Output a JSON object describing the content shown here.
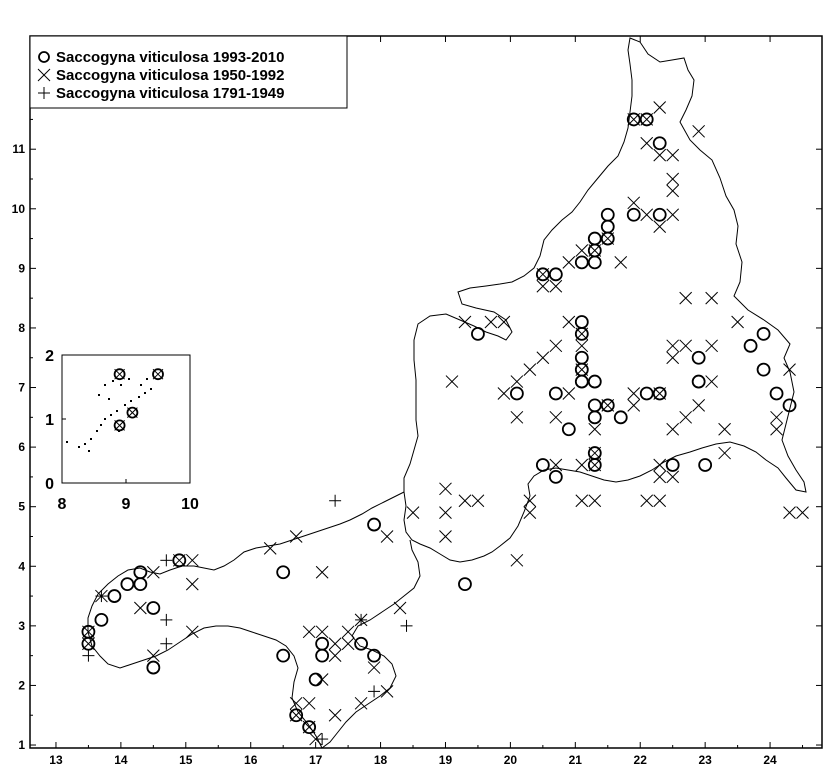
{
  "legend": {
    "entries": [
      {
        "label": "Saccogyna viticulosa 1993-2010",
        "symbol": "circle"
      },
      {
        "label": "Saccogyna viticulosa 1950-1992",
        "symbol": "cross-x"
      },
      {
        "label": "Saccogyna viticulosa 1791-1949",
        "symbol": "plus"
      }
    ],
    "placement": "top-left"
  },
  "axes": {
    "x_ticks": [
      "13",
      "14",
      "15",
      "16",
      "17",
      "18",
      "19",
      "20",
      "21",
      "22",
      "23",
      "24"
    ],
    "y_ticks": [
      "1",
      "2",
      "3",
      "4",
      "5",
      "6",
      "7",
      "8",
      "9",
      "10",
      "11"
    ],
    "xlim": [
      12.6,
      24.8
    ],
    "ylim": [
      0.95,
      12.9
    ]
  },
  "inset": {
    "x_ticks": [
      "8",
      "9",
      "10"
    ],
    "y_ticks": [
      "0",
      "1",
      "2"
    ],
    "xlim": [
      8,
      10
    ],
    "ylim": [
      0,
      2
    ],
    "points_circle": [
      {
        "x": 8.9,
        "y": 1.7
      },
      {
        "x": 9.5,
        "y": 1.7
      },
      {
        "x": 9.1,
        "y": 1.1
      },
      {
        "x": 8.9,
        "y": 0.9
      }
    ],
    "points_x": [
      {
        "x": 8.9,
        "y": 1.7
      },
      {
        "x": 9.5,
        "y": 1.7
      },
      {
        "x": 9.1,
        "y": 1.1
      },
      {
        "x": 8.9,
        "y": 0.9
      }
    ]
  },
  "chart_data": {
    "type": "scatter",
    "title": "",
    "xlabel": "",
    "ylabel": "",
    "xlim": [
      12.6,
      24.8
    ],
    "ylim": [
      0.95,
      12.9
    ],
    "grid": false,
    "series": [
      {
        "name": "Saccogyna viticulosa 1993-2010",
        "marker": "circle",
        "points": [
          [
            21.9,
            11.5
          ],
          [
            22.1,
            11.5
          ],
          [
            22.3,
            11.1
          ],
          [
            21.5,
            9.9
          ],
          [
            21.9,
            9.9
          ],
          [
            22.3,
            9.9
          ],
          [
            21.5,
            9.7
          ],
          [
            21.3,
            9.5
          ],
          [
            21.5,
            9.5
          ],
          [
            21.3,
            9.3
          ],
          [
            21.1,
            9.1
          ],
          [
            21.3,
            9.1
          ],
          [
            20.5,
            8.9
          ],
          [
            20.7,
            8.9
          ],
          [
            21.1,
            8.1
          ],
          [
            21.1,
            7.9
          ],
          [
            19.5,
            7.9
          ],
          [
            23.9,
            7.9
          ],
          [
            23.7,
            7.7
          ],
          [
            21.1,
            7.5
          ],
          [
            22.9,
            7.5
          ],
          [
            21.1,
            7.3
          ],
          [
            23.9,
            7.3
          ],
          [
            21.1,
            7.1
          ],
          [
            21.3,
            7.1
          ],
          [
            22.9,
            7.1
          ],
          [
            20.1,
            6.9
          ],
          [
            20.7,
            6.9
          ],
          [
            22.1,
            6.9
          ],
          [
            22.3,
            6.9
          ],
          [
            24.1,
            6.9
          ],
          [
            21.3,
            6.7
          ],
          [
            21.5,
            6.7
          ],
          [
            24.3,
            6.7
          ],
          [
            21.3,
            6.5
          ],
          [
            21.7,
            6.5
          ],
          [
            20.9,
            6.3
          ],
          [
            21.3,
            5.9
          ],
          [
            20.5,
            5.7
          ],
          [
            21.3,
            5.7
          ],
          [
            22.5,
            5.7
          ],
          [
            23.0,
            5.7
          ],
          [
            20.7,
            5.5
          ],
          [
            17.9,
            4.7
          ],
          [
            14.9,
            4.1
          ],
          [
            14.3,
            3.9
          ],
          [
            16.5,
            3.9
          ],
          [
            14.1,
            3.7
          ],
          [
            14.3,
            3.7
          ],
          [
            19.3,
            3.7
          ],
          [
            13.9,
            3.5
          ],
          [
            14.5,
            3.3
          ],
          [
            13.7,
            3.1
          ],
          [
            13.5,
            2.9
          ],
          [
            13.5,
            2.7
          ],
          [
            17.1,
            2.7
          ],
          [
            17.7,
            2.7
          ],
          [
            16.5,
            2.5
          ],
          [
            17.1,
            2.5
          ],
          [
            17.9,
            2.5
          ],
          [
            14.5,
            2.3
          ],
          [
            17.0,
            2.1
          ],
          [
            16.7,
            1.5
          ],
          [
            16.9,
            1.3
          ]
        ]
      },
      {
        "name": "Saccogyna viticulosa 1950-1992",
        "marker": "cross-x",
        "points": [
          [
            21.9,
            11.5
          ],
          [
            22.1,
            11.5
          ],
          [
            22.3,
            11.7
          ],
          [
            22.9,
            11.3
          ],
          [
            22.1,
            11.1
          ],
          [
            22.3,
            10.9
          ],
          [
            22.5,
            10.9
          ],
          [
            22.5,
            10.5
          ],
          [
            22.5,
            10.3
          ],
          [
            21.9,
            10.1
          ],
          [
            22.1,
            9.9
          ],
          [
            22.5,
            9.9
          ],
          [
            22.3,
            9.7
          ],
          [
            21.5,
            9.5
          ],
          [
            21.3,
            9.3
          ],
          [
            21.1,
            9.3
          ],
          [
            20.9,
            9.1
          ],
          [
            21.7,
            9.1
          ],
          [
            20.5,
            8.9
          ],
          [
            20.7,
            8.7
          ],
          [
            20.5,
            8.7
          ],
          [
            22.7,
            8.5
          ],
          [
            23.1,
            8.5
          ],
          [
            23.5,
            8.1
          ],
          [
            19.3,
            8.1
          ],
          [
            19.7,
            8.1
          ],
          [
            19.9,
            8.1
          ],
          [
            20.9,
            8.1
          ],
          [
            21.1,
            7.9
          ],
          [
            20.7,
            7.7
          ],
          [
            21.1,
            7.7
          ],
          [
            22.5,
            7.7
          ],
          [
            22.7,
            7.7
          ],
          [
            23.1,
            7.7
          ],
          [
            20.5,
            7.5
          ],
          [
            22.5,
            7.5
          ],
          [
            20.3,
            7.3
          ],
          [
            21.1,
            7.3
          ],
          [
            24.3,
            7.3
          ],
          [
            19.1,
            7.1
          ],
          [
            20.1,
            7.1
          ],
          [
            23.1,
            7.1
          ],
          [
            19.9,
            6.9
          ],
          [
            20.9,
            6.9
          ],
          [
            21.9,
            6.9
          ],
          [
            22.3,
            6.9
          ],
          [
            21.5,
            6.7
          ],
          [
            21.9,
            6.7
          ],
          [
            22.9,
            6.7
          ],
          [
            20.1,
            6.5
          ],
          [
            20.7,
            6.5
          ],
          [
            22.7,
            6.5
          ],
          [
            24.1,
            6.5
          ],
          [
            21.3,
            6.3
          ],
          [
            22.5,
            6.3
          ],
          [
            23.3,
            6.3
          ],
          [
            24.1,
            6.3
          ],
          [
            21.3,
            5.9
          ],
          [
            23.3,
            5.9
          ],
          [
            20.7,
            5.7
          ],
          [
            21.3,
            5.7
          ],
          [
            22.3,
            5.7
          ],
          [
            21.1,
            5.7
          ],
          [
            22.3,
            5.5
          ],
          [
            22.5,
            5.5
          ],
          [
            22.1,
            5.1
          ],
          [
            22.3,
            5.1
          ],
          [
            19.0,
            5.3
          ],
          [
            19.3,
            5.1
          ],
          [
            19.5,
            5.1
          ],
          [
            20.3,
            5.1
          ],
          [
            21.1,
            5.1
          ],
          [
            21.3,
            5.1
          ],
          [
            19.0,
            4.9
          ],
          [
            20.3,
            4.9
          ],
          [
            24.3,
            4.9
          ],
          [
            24.5,
            4.9
          ],
          [
            18.5,
            4.9
          ],
          [
            19.0,
            4.5
          ],
          [
            18.1,
            4.5
          ],
          [
            16.7,
            4.5
          ],
          [
            16.3,
            4.3
          ],
          [
            20.1,
            4.1
          ],
          [
            14.9,
            4.1
          ],
          [
            15.1,
            4.1
          ],
          [
            17.1,
            3.9
          ],
          [
            14.5,
            3.9
          ],
          [
            15.1,
            3.7
          ],
          [
            13.7,
            3.5
          ],
          [
            14.3,
            3.3
          ],
          [
            18.3,
            3.3
          ],
          [
            17.7,
            3.1
          ],
          [
            17.5,
            2.9
          ],
          [
            16.9,
            2.9
          ],
          [
            17.1,
            2.9
          ],
          [
            15.1,
            2.9
          ],
          [
            13.5,
            2.9
          ],
          [
            13.5,
            2.7
          ],
          [
            17.3,
            2.7
          ],
          [
            17.5,
            2.7
          ],
          [
            14.5,
            2.5
          ],
          [
            17.3,
            2.5
          ],
          [
            17.9,
            2.3
          ],
          [
            17.1,
            2.1
          ],
          [
            18.1,
            1.9
          ],
          [
            17.7,
            1.7
          ],
          [
            16.7,
            1.7
          ],
          [
            16.9,
            1.7
          ],
          [
            16.7,
            1.5
          ],
          [
            17.3,
            1.5
          ],
          [
            16.9,
            1.3
          ],
          [
            17.0,
            1.1
          ]
        ]
      },
      {
        "name": "Saccogyna viticulosa 1791-1949",
        "marker": "plus",
        "points": [
          [
            17.3,
            5.1
          ],
          [
            14.7,
            4.1
          ],
          [
            13.7,
            3.5
          ],
          [
            14.7,
            3.1
          ],
          [
            14.7,
            2.7
          ],
          [
            17.7,
            3.1
          ],
          [
            17.9,
            1.9
          ],
          [
            17.1,
            1.1
          ],
          [
            13.5,
            2.5
          ],
          [
            18.4,
            3.0
          ]
        ]
      }
    ]
  }
}
